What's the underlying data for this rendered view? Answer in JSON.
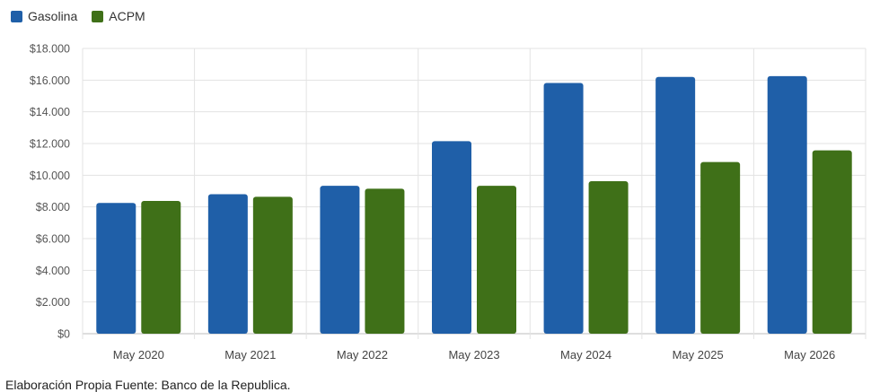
{
  "chart_data": {
    "type": "bar",
    "title": "",
    "xlabel": "",
    "ylabel": "",
    "categories": [
      "May 2020",
      "May 2021",
      "May 2022",
      "May 2023",
      "May 2024",
      "May 2025",
      "May 2026"
    ],
    "series": [
      {
        "name": "Gasolina",
        "color": "#1f5fa8",
        "values": [
          8250,
          8800,
          9330,
          12150,
          15820,
          16200,
          16250
        ]
      },
      {
        "name": "ACPM",
        "color": "#3f7018",
        "values": [
          8380,
          8640,
          9150,
          9330,
          9620,
          10830,
          11570
        ]
      }
    ],
    "ylim": [
      0,
      18000
    ],
    "yticks": [
      0,
      2000,
      4000,
      6000,
      8000,
      10000,
      12000,
      14000,
      16000,
      18000
    ],
    "ytick_labels": [
      "$0",
      "$2.000",
      "$4.000",
      "$6.000",
      "$8.000",
      "$10.000",
      "$12.000",
      "$14.000",
      "$16.000",
      "$18.000"
    ],
    "grid": true,
    "legend_position": "top-left"
  },
  "source_note": "Elaboración Propia Fuente: Banco de la Republica."
}
